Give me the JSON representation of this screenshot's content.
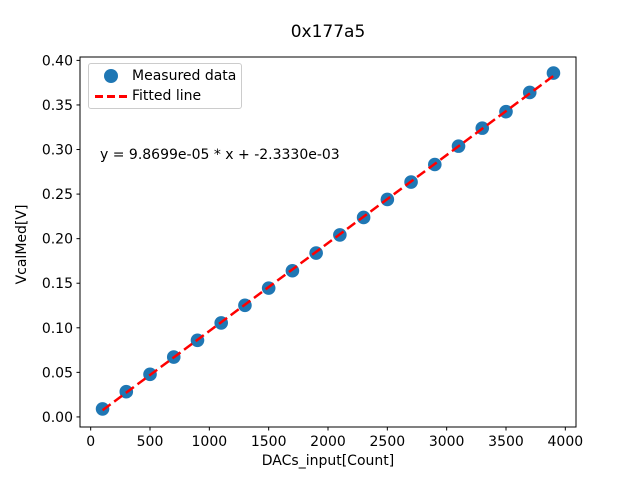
{
  "chart_data": {
    "type": "scatter",
    "title": "0x177a5",
    "xlabel": "DACs_input[Count]",
    "ylabel": "VcalMed[V]",
    "annotation": "y = 9.8699e-05 * x + -2.3330e-03",
    "grid": false,
    "xlim": [
      -90,
      4090
    ],
    "ylim": [
      -0.0113,
      0.4038
    ],
    "x_tick_values": [
      0,
      500,
      1000,
      1500,
      2000,
      2500,
      3000,
      3500,
      4000
    ],
    "x_tick_labels": [
      "0",
      "500",
      "1000",
      "1500",
      "2000",
      "2500",
      "3000",
      "3500",
      "4000"
    ],
    "y_tick_values": [
      0.0,
      0.05,
      0.1,
      0.15,
      0.2,
      0.25,
      0.3,
      0.35,
      0.4
    ],
    "y_tick_labels": [
      "0.00",
      "0.05",
      "0.10",
      "0.15",
      "0.20",
      "0.25",
      "0.30",
      "0.35",
      "0.40"
    ],
    "series": [
      {
        "name": "Measured data",
        "type": "scatter",
        "marker": "circle",
        "color": "#1f77b4",
        "x": [
          100,
          300,
          500,
          700,
          900,
          1100,
          1300,
          1500,
          1700,
          1900,
          2100,
          2300,
          2500,
          2700,
          2900,
          3100,
          3300,
          3500,
          3700,
          3900
        ],
        "y": [
          0.009,
          0.0283,
          0.0478,
          0.0672,
          0.086,
          0.1055,
          0.1252,
          0.1445,
          0.164,
          0.1838,
          0.2042,
          0.2238,
          0.244,
          0.2635,
          0.2832,
          0.3038,
          0.324,
          0.3425,
          0.364,
          0.3858
        ]
      },
      {
        "name": "Fitted line",
        "type": "line",
        "line_style": "dashed",
        "color": "#ff0000",
        "slope": 9.8699e-05,
        "intercept": -0.002333,
        "x_range": [
          100,
          3900
        ]
      }
    ],
    "legend": {
      "position": "upper left",
      "entries": [
        {
          "label": "Measured data",
          "marker": "circle",
          "color": "#1f77b4"
        },
        {
          "label": "Fitted line",
          "marker": "dashed-line",
          "color": "#ff0000"
        }
      ]
    }
  }
}
